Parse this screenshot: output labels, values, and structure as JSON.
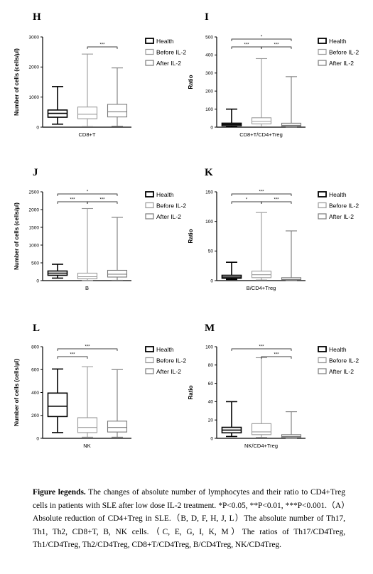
{
  "legend": {
    "health": "Health",
    "before": "Before IL-2",
    "after": "After IL-2",
    "colors": {
      "health": "#000000",
      "before": "#9a9a9a",
      "after": "#7a7a7a"
    }
  },
  "chart_data": [
    {
      "panel": "H",
      "type": "box",
      "ylabel": "Number of cells (cells/μl)",
      "xlabel": "CD8+T",
      "ylim": [
        0,
        3000
      ],
      "yticks": [
        "0",
        "1000",
        "2000",
        "3000"
      ],
      "series": [
        {
          "name": "Health",
          "min": 100,
          "q1": 330,
          "median": 460,
          "q3": 570,
          "max": 1350
        },
        {
          "name": "Before IL-2",
          "min": 20,
          "q1": 280,
          "median": 430,
          "q3": 670,
          "max": 2430
        },
        {
          "name": "After IL-2",
          "min": 30,
          "q1": 340,
          "median": 510,
          "q3": 760,
          "max": 1970
        }
      ],
      "significance": [
        {
          "pair": [
            1,
            2
          ],
          "label": "***"
        }
      ]
    },
    {
      "panel": "I",
      "type": "box",
      "ylabel": "Ratio",
      "xlabel": "CD8+T/CD4+Treg",
      "ylim": [
        0,
        500
      ],
      "yticks": [
        "0",
        "100",
        "200",
        "300",
        "400",
        "500"
      ],
      "series": [
        {
          "name": "Health",
          "min": 2,
          "q1": 8,
          "median": 15,
          "q3": 22,
          "max": 100
        },
        {
          "name": "Before IL-2",
          "min": 3,
          "q1": 18,
          "median": 32,
          "q3": 52,
          "max": 380
        },
        {
          "name": "After IL-2",
          "min": 1,
          "q1": 5,
          "median": 10,
          "q3": 22,
          "max": 280
        }
      ],
      "significance": [
        {
          "pair": [
            0,
            1
          ],
          "label": "***"
        },
        {
          "pair": [
            1,
            2
          ],
          "label": "***"
        },
        {
          "pair": [
            0,
            2
          ],
          "label": "*"
        }
      ]
    },
    {
      "panel": "J",
      "type": "box",
      "ylabel": "Number of cells (cells/μl)",
      "xlabel": "B",
      "ylim": [
        0,
        2500
      ],
      "yticks": [
        "0",
        "500",
        "1000",
        "1500",
        "2000",
        "2500"
      ],
      "series": [
        {
          "name": "Health",
          "min": 70,
          "q1": 150,
          "median": 210,
          "q3": 270,
          "max": 460
        },
        {
          "name": "Before IL-2",
          "min": 5,
          "q1": 50,
          "median": 110,
          "q3": 210,
          "max": 2030
        },
        {
          "name": "After IL-2",
          "min": 10,
          "q1": 100,
          "median": 180,
          "q3": 290,
          "max": 1780
        }
      ],
      "significance": [
        {
          "pair": [
            0,
            1
          ],
          "label": "***"
        },
        {
          "pair": [
            1,
            2
          ],
          "label": "***"
        },
        {
          "pair": [
            0,
            2
          ],
          "label": "*"
        }
      ]
    },
    {
      "panel": "K",
      "type": "box",
      "ylabel": "Ratio",
      "xlabel": "B/CD4+Treg",
      "ylim": [
        0,
        150
      ],
      "yticks": [
        "0",
        "50",
        "100",
        "150"
      ],
      "series": [
        {
          "name": "Health",
          "min": 2,
          "q1": 4,
          "median": 6,
          "q3": 9,
          "max": 31
        },
        {
          "name": "Before IL-2",
          "min": 1,
          "q1": 5,
          "median": 10,
          "q3": 16,
          "max": 115
        },
        {
          "name": "After IL-2",
          "min": 0,
          "q1": 1,
          "median": 2,
          "q3": 5,
          "max": 84
        }
      ],
      "significance": [
        {
          "pair": [
            0,
            1
          ],
          "label": "*"
        },
        {
          "pair": [
            1,
            2
          ],
          "label": "***"
        },
        {
          "pair": [
            0,
            2
          ],
          "label": "***"
        }
      ]
    },
    {
      "panel": "L",
      "type": "box",
      "ylabel": "Number of cells (cells/μl)",
      "xlabel": "NK",
      "ylim": [
        0,
        800
      ],
      "yticks": [
        "0",
        "200",
        "400",
        "600",
        "800"
      ],
      "series": [
        {
          "name": "Health",
          "min": 50,
          "q1": 190,
          "median": 280,
          "q3": 395,
          "max": 605
        },
        {
          "name": "Before IL-2",
          "min": 10,
          "q1": 50,
          "median": 95,
          "q3": 180,
          "max": 625
        },
        {
          "name": "After IL-2",
          "min": 10,
          "q1": 55,
          "median": 95,
          "q3": 150,
          "max": 600
        }
      ],
      "significance": [
        {
          "pair": [
            0,
            1
          ],
          "label": "***"
        },
        {
          "pair": [
            0,
            2
          ],
          "label": "***"
        }
      ]
    },
    {
      "panel": "M",
      "type": "box",
      "ylabel": "Ratio",
      "xlabel": "NK/CD4+Treg",
      "ylim": [
        0,
        100
      ],
      "yticks": [
        "0",
        "20",
        "40",
        "60",
        "80",
        "100"
      ],
      "series": [
        {
          "name": "Health",
          "min": 2,
          "q1": 6,
          "median": 9,
          "q3": 12,
          "max": 40
        },
        {
          "name": "Before IL-2",
          "min": 1,
          "q1": 4,
          "median": 7,
          "q3": 16,
          "max": 88
        },
        {
          "name": "After IL-2",
          "min": 0,
          "q1": 1,
          "median": 2,
          "q3": 4,
          "max": 29
        }
      ],
      "significance": [
        {
          "pair": [
            1,
            2
          ],
          "label": "***"
        },
        {
          "pair": [
            0,
            2
          ],
          "label": "***"
        }
      ]
    }
  ],
  "caption": {
    "label": "Figure legends.",
    "text": " The changes of absolute number of lymphocytes and their ratio to CD4+Treg cells in patients with SLE after low dose IL-2 treatment. *P<0.05, **P<0.01, ***P<0.001.（A）Absolute reduction of CD4+Treg in SLE.（B, D, F, H, J, L）The absolute number of Th17, Th1, Th2, CD8+T, B, NK cells.（C, E, G, I, K, M）The ratios of Th17/CD4Treg, Th1/CD4Treg, Th2/CD4Treg, CD8+T/CD4Treg, B/CD4Treg, NK/CD4Treg."
  }
}
